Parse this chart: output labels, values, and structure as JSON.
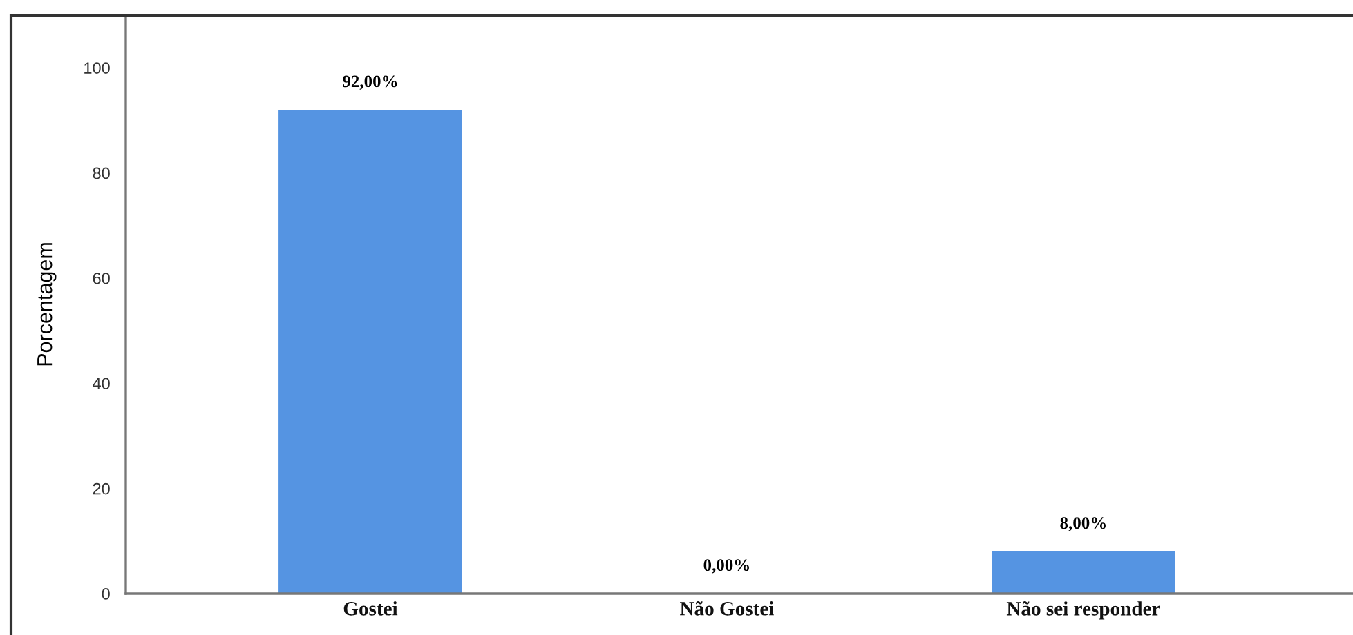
{
  "chart_data": {
    "type": "bar",
    "ylabel": "Porcentagem",
    "categories": [
      "Gostei",
      "Não Gostei",
      "Não sei responder"
    ],
    "values": [
      92,
      0,
      8
    ],
    "value_labels": [
      "92,00%",
      "0,00%",
      "8,00%"
    ],
    "color": "#5594e2",
    "ylim": [
      0,
      110
    ],
    "yticks": [
      0,
      20,
      40,
      60,
      80,
      100
    ],
    "grid": false,
    "legend": false
  }
}
